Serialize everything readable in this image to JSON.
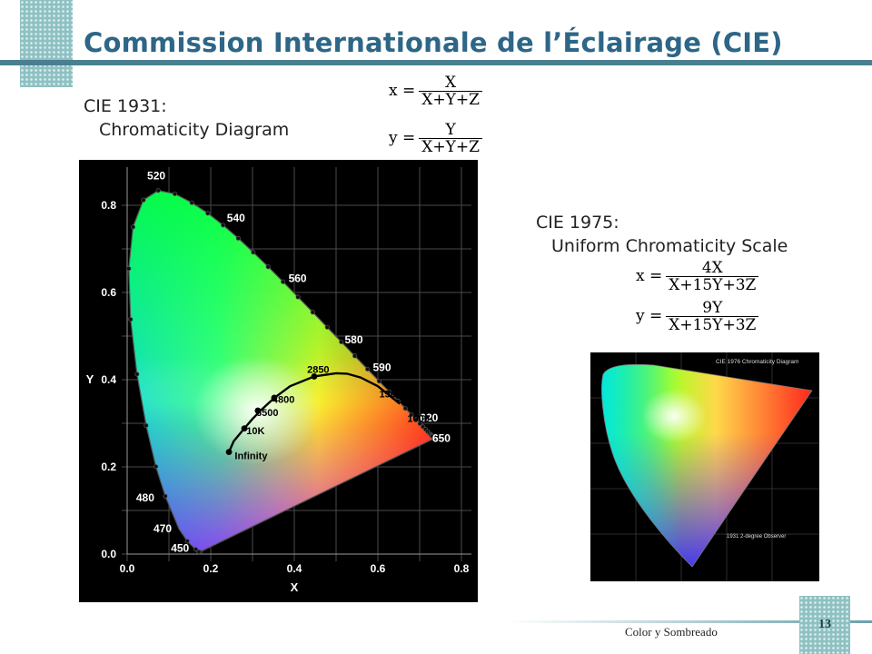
{
  "slide": {
    "title": "Commission Internationale de l’Éclairage (CIE)",
    "footer": "Color y Sombreado",
    "page_number": "13"
  },
  "cie1931": {
    "heading_line1": "CIE 1931:",
    "heading_line2": "Chromaticity Diagram",
    "formula_x": {
      "lhs": "x =",
      "num": "X",
      "den": "X+Y+Z"
    },
    "formula_y": {
      "lhs": "y =",
      "num": "Y",
      "den": "X+Y+Z"
    },
    "diagram": {
      "xlabel": "X",
      "ylabel": "Y",
      "x_ticks": [
        "0.0",
        "0.2",
        "0.4",
        "0.6",
        "0.8"
      ],
      "y_ticks": [
        "0.0",
        "0.2",
        "0.4",
        "0.6",
        "0.8"
      ],
      "wavelength_labels": [
        {
          "text": "520",
          "x": 0.074,
          "y": 0.834
        },
        {
          "text": "540",
          "x": 0.23,
          "y": 0.754
        },
        {
          "text": "560",
          "x": 0.373,
          "y": 0.624
        },
        {
          "text": "580",
          "x": 0.512,
          "y": 0.487
        },
        {
          "text": "590",
          "x": 0.575,
          "y": 0.424
        },
        {
          "text": "620",
          "x": 0.692,
          "y": 0.308
        },
        {
          "text": "650",
          "x": 0.726,
          "y": 0.274
        },
        {
          "text": "480",
          "x": 0.091,
          "y": 0.133
        },
        {
          "text": "470",
          "x": 0.124,
          "y": 0.058
        },
        {
          "text": "450",
          "x": 0.157,
          "y": 0.018
        }
      ],
      "planckian_labels": [
        {
          "text": "2850",
          "x": 0.448,
          "y": 0.407
        },
        {
          "text": "1500",
          "x": 0.586,
          "y": 0.393
        },
        {
          "text": "1000",
          "x": 0.653,
          "y": 0.345
        },
        {
          "text": "4800",
          "x": 0.352,
          "y": 0.359
        },
        {
          "text": "6500",
          "x": 0.313,
          "y": 0.329
        },
        {
          "text": "10K",
          "x": 0.281,
          "y": 0.288
        },
        {
          "text": "Infinity",
          "x": 0.24,
          "y": 0.234
        }
      ]
    }
  },
  "cie1975": {
    "heading_line1": "CIE 1975:",
    "heading_line2": "Uniform Chromaticity Scale",
    "formula_x": {
      "lhs": "x =",
      "num": "4X",
      "den": "X+15Y+3Z"
    },
    "formula_y": {
      "lhs": "y =",
      "num": "9Y",
      "den": "X+15Y+3Z"
    },
    "diagram": {
      "title": "CIE 1976 Chromaticity Diagram",
      "observer": "1931 2-degree Observer"
    }
  }
}
